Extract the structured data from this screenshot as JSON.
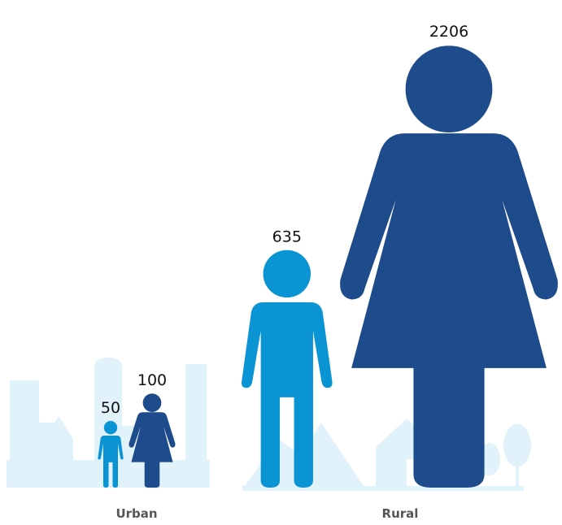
{
  "chart_data": {
    "type": "pictograph",
    "categories": [
      "Urban",
      "Rural"
    ],
    "series": [
      {
        "shape": "child",
        "color": "#0a94d3",
        "values": [
          50,
          635
        ]
      },
      {
        "shape": "woman",
        "color": "#1e4b8c",
        "values": [
          100,
          2206
        ]
      }
    ]
  }
}
